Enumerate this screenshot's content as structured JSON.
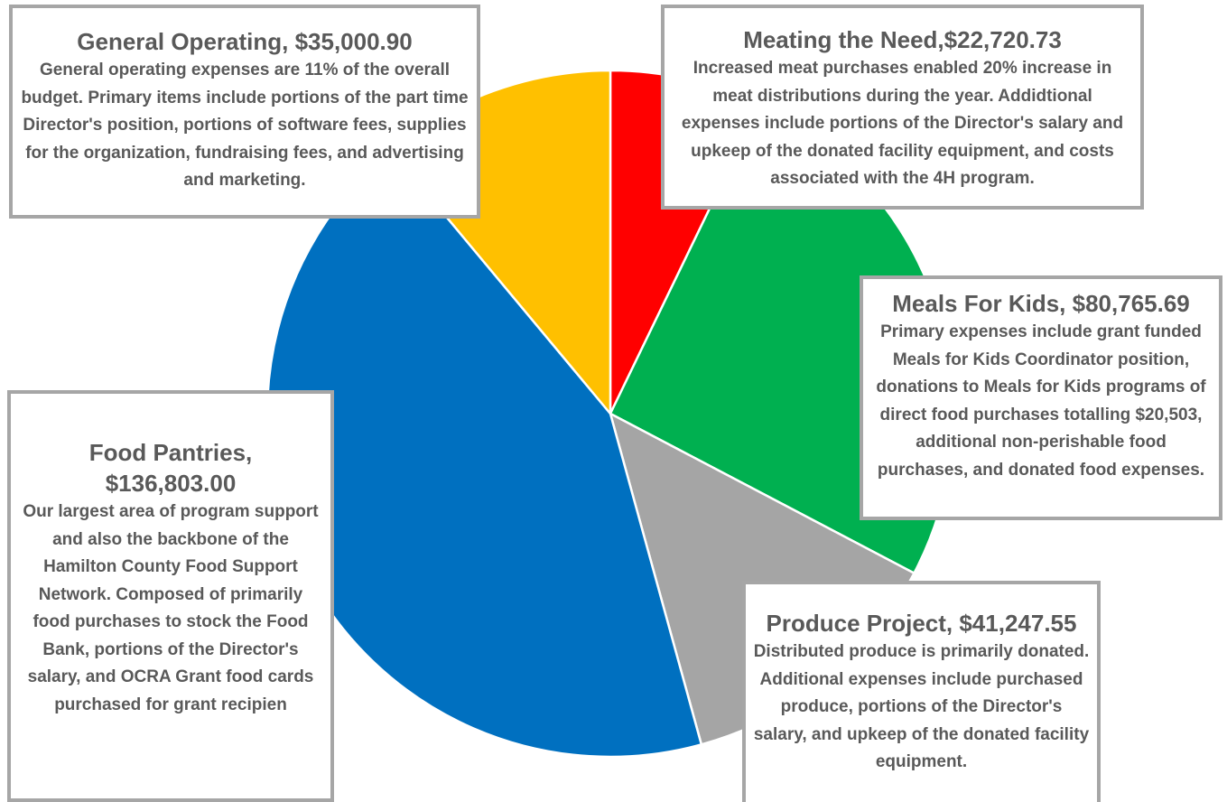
{
  "chart_data": {
    "type": "pie",
    "categories": [
      "Meating the Need,",
      "Meals For Kids, ",
      "Produce Project, ",
      "Food Pantries,",
      "General Operating, "
    ],
    "values": [
      22720.73,
      80765.69,
      41247.55,
      136803.0,
      35000.9
    ],
    "value_labels": [
      "$22,720.73",
      "$80,765.69",
      "$41,247.55",
      "$136,803.00",
      "$35,000.90"
    ],
    "colors": [
      "#ff0000",
      "#00b050",
      "#a5a5a5",
      "#0070c0",
      "#ffc000"
    ],
    "descriptions": [
      "Increased meat purchases enabled 20% increase in meat distributions during the year. Addidtional expenses include portions of the Director's salary and upkeep of the donated facility equipment, and costs associated with the 4H program.",
      "Primary expenses include grant funded Meals for Kids Coordinator position, donations to Meals for Kids programs of direct food purchases totalling $20,503, additional non-perishable food purchases, and donated food expenses.",
      "Distributed produce is primarily donated.  Additional expenses include purchased produce, portions of the Director's salary, and upkeep of the donated facility equipment.",
      "Our largest area of program support and also the backbone of the Hamilton County Food Support Network. Composed of primarily food purchases to stock the Food Bank, portions of the Director's salary, and OCRA Grant food cards purchased for grant recipien",
      "General operating expenses are 11% of the overall budget.  Primary items include portions of the part time Director's position, portions of software fees, supplies for the organization, fundraising fees, and advertising and marketing."
    ]
  }
}
